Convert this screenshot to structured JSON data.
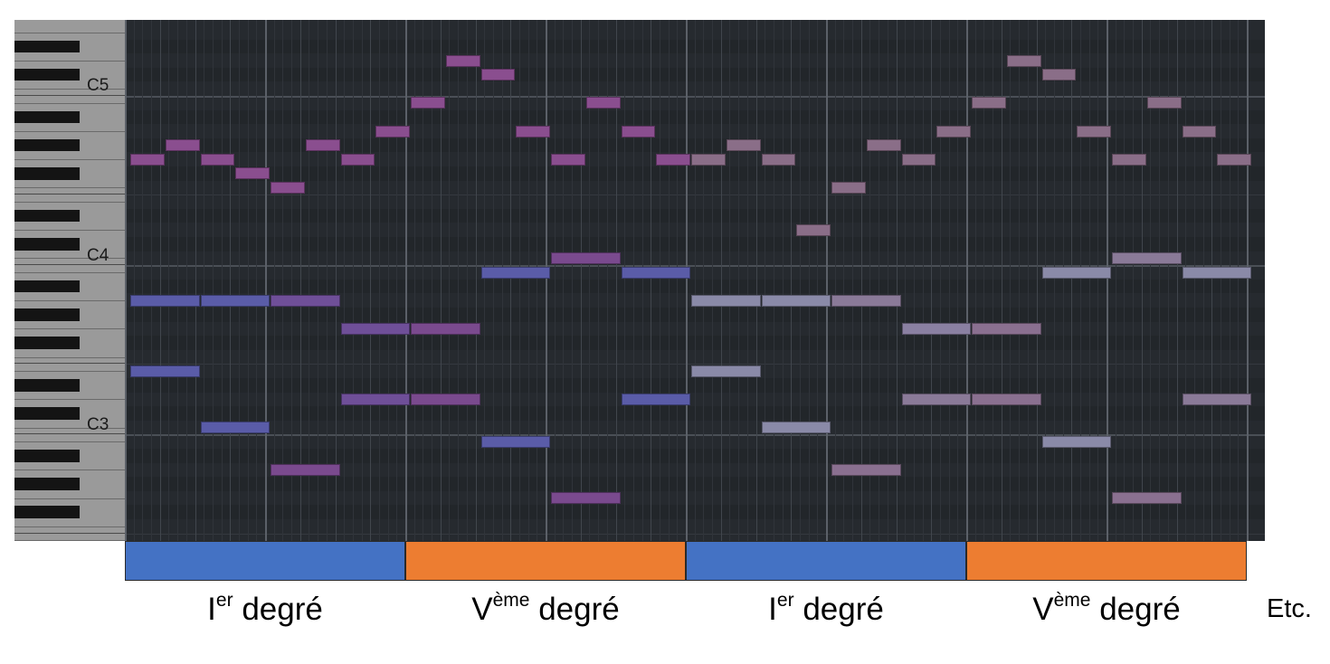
{
  "keyboard": {
    "octave_labels": [
      {
        "text": "C5",
        "midi": 72
      },
      {
        "text": "C4",
        "midi": 60
      },
      {
        "text": "C3",
        "midi": 48
      }
    ]
  },
  "piano_roll": {
    "pitch_top": 76,
    "pitch_bottom": 40,
    "total_beats": 32,
    "beats_per_bar": 4,
    "notes": [
      {
        "start": 0,
        "len": 1,
        "pitch": 67,
        "color": "#8a4e8f"
      },
      {
        "start": 1,
        "len": 1,
        "pitch": 68,
        "color": "#8a4e8f"
      },
      {
        "start": 2,
        "len": 1,
        "pitch": 67,
        "color": "#8a4e8f"
      },
      {
        "start": 4,
        "len": 1,
        "pitch": 65,
        "color": "#8a4e8f"
      },
      {
        "start": 5,
        "len": 1,
        "pitch": 68,
        "color": "#8a4e8f"
      },
      {
        "start": 6,
        "len": 1,
        "pitch": 67,
        "color": "#8a4e8f"
      },
      {
        "start": 7,
        "len": 1,
        "pitch": 69,
        "color": "#8a4e8f"
      },
      {
        "start": 8,
        "len": 1,
        "pitch": 71,
        "color": "#8a4e8f"
      },
      {
        "start": 9,
        "len": 1,
        "pitch": 74,
        "color": "#8a4e8f"
      },
      {
        "start": 10,
        "len": 1,
        "pitch": 73,
        "color": "#8a4e8f"
      },
      {
        "start": 11,
        "len": 1,
        "pitch": 69,
        "color": "#8a4e8f"
      },
      {
        "start": 12,
        "len": 1,
        "pitch": 67,
        "color": "#8a4e8f"
      },
      {
        "start": 13,
        "len": 1,
        "pitch": 71,
        "color": "#8a4e8f"
      },
      {
        "start": 14,
        "len": 1,
        "pitch": 69,
        "color": "#8a4e8f"
      },
      {
        "start": 15,
        "len": 1,
        "pitch": 67,
        "color": "#8a4e8f"
      },
      {
        "start": 3,
        "len": 1,
        "pitch": 66,
        "color": "#8a4e8f"
      },
      {
        "start": 0,
        "len": 2,
        "pitch": 57,
        "color": "#5a5ca8"
      },
      {
        "start": 2,
        "len": 2,
        "pitch": 57,
        "color": "#5a5ca8"
      },
      {
        "start": 4,
        "len": 2,
        "pitch": 57,
        "color": "#6f4f98"
      },
      {
        "start": 6,
        "len": 2,
        "pitch": 55,
        "color": "#6f4f98"
      },
      {
        "start": 8,
        "len": 2,
        "pitch": 55,
        "color": "#7a4a8e"
      },
      {
        "start": 10,
        "len": 2,
        "pitch": 59,
        "color": "#5a5ca8"
      },
      {
        "start": 12,
        "len": 2,
        "pitch": 60,
        "color": "#7a4a8e"
      },
      {
        "start": 14,
        "len": 2,
        "pitch": 59,
        "color": "#5a5ca8"
      },
      {
        "start": 0,
        "len": 2,
        "pitch": 52,
        "color": "#5a5ca8"
      },
      {
        "start": 2,
        "len": 2,
        "pitch": 48,
        "color": "#5a5ca8"
      },
      {
        "start": 4,
        "len": 2,
        "pitch": 45,
        "color": "#7a4a8e"
      },
      {
        "start": 6,
        "len": 2,
        "pitch": 50,
        "color": "#6f4f98"
      },
      {
        "start": 8,
        "len": 2,
        "pitch": 50,
        "color": "#7a4a8e"
      },
      {
        "start": 10,
        "len": 2,
        "pitch": 47,
        "color": "#5a5ca8"
      },
      {
        "start": 12,
        "len": 2,
        "pitch": 43,
        "color": "#7a4a8e"
      },
      {
        "start": 14,
        "len": 2,
        "pitch": 50,
        "color": "#5a5ca8"
      },
      {
        "start": 16,
        "len": 1,
        "pitch": 67,
        "color": "#8a6e88"
      },
      {
        "start": 17,
        "len": 1,
        "pitch": 68,
        "color": "#8a6e88"
      },
      {
        "start": 18,
        "len": 1,
        "pitch": 67,
        "color": "#8a6e88"
      },
      {
        "start": 19,
        "len": 1,
        "pitch": 62,
        "color": "#8a6e88"
      },
      {
        "start": 20,
        "len": 1,
        "pitch": 65,
        "color": "#8a6e88"
      },
      {
        "start": 21,
        "len": 1,
        "pitch": 68,
        "color": "#8a6e88"
      },
      {
        "start": 22,
        "len": 1,
        "pitch": 67,
        "color": "#8a6e88"
      },
      {
        "start": 23,
        "len": 1,
        "pitch": 69,
        "color": "#8a6e88"
      },
      {
        "start": 24,
        "len": 1,
        "pitch": 71,
        "color": "#8a6e88"
      },
      {
        "start": 25,
        "len": 1,
        "pitch": 74,
        "color": "#8a6e88"
      },
      {
        "start": 26,
        "len": 1,
        "pitch": 73,
        "color": "#8a6e88"
      },
      {
        "start": 27,
        "len": 1,
        "pitch": 69,
        "color": "#8a6e88"
      },
      {
        "start": 28,
        "len": 1,
        "pitch": 67,
        "color": "#8a6e88"
      },
      {
        "start": 29,
        "len": 1,
        "pitch": 71,
        "color": "#8a6e88"
      },
      {
        "start": 30,
        "len": 1,
        "pitch": 69,
        "color": "#8a6e88"
      },
      {
        "start": 31,
        "len": 1,
        "pitch": 67,
        "color": "#8a6e88"
      },
      {
        "start": 16,
        "len": 2,
        "pitch": 57,
        "color": "#8a8aa8"
      },
      {
        "start": 18,
        "len": 2,
        "pitch": 57,
        "color": "#8a8aa8"
      },
      {
        "start": 20,
        "len": 2,
        "pitch": 57,
        "color": "#8a7a98"
      },
      {
        "start": 22,
        "len": 2,
        "pitch": 55,
        "color": "#8a80a2"
      },
      {
        "start": 24,
        "len": 2,
        "pitch": 55,
        "color": "#8a7090"
      },
      {
        "start": 26,
        "len": 2,
        "pitch": 59,
        "color": "#8a8aa8"
      },
      {
        "start": 28,
        "len": 2,
        "pitch": 60,
        "color": "#8a7a98"
      },
      {
        "start": 30,
        "len": 2,
        "pitch": 59,
        "color": "#8a8aa8"
      },
      {
        "start": 16,
        "len": 2,
        "pitch": 52,
        "color": "#8a8aa8"
      },
      {
        "start": 18,
        "len": 2,
        "pitch": 48,
        "color": "#8a8aa8"
      },
      {
        "start": 20,
        "len": 2,
        "pitch": 45,
        "color": "#8a7090"
      },
      {
        "start": 22,
        "len": 2,
        "pitch": 50,
        "color": "#8a7a98"
      },
      {
        "start": 24,
        "len": 2,
        "pitch": 50,
        "color": "#8a7090"
      },
      {
        "start": 26,
        "len": 2,
        "pitch": 47,
        "color": "#8a8aa8"
      },
      {
        "start": 28,
        "len": 2,
        "pitch": 43,
        "color": "#8a7090"
      },
      {
        "start": 30,
        "len": 2,
        "pitch": 50,
        "color": "#8a7a98"
      }
    ]
  },
  "sections": [
    {
      "degree": "I",
      "suffix": "er",
      "word": "degré",
      "color": "#4472c4",
      "bars": 2
    },
    {
      "degree": "V",
      "suffix": "ème",
      "word": "degré",
      "color": "#ed7d31",
      "bars": 2
    },
    {
      "degree": "I",
      "suffix": "er",
      "word": "degré",
      "color": "#4472c4",
      "bars": 2
    },
    {
      "degree": "V",
      "suffix": "ème",
      "word": "degré",
      "color": "#ed7d31",
      "bars": 2
    }
  ],
  "etc_label": "Etc.",
  "colors": {
    "roll_background": "#262a2f",
    "keyboard_white": "#9a9a9a",
    "keyboard_black": "#141414"
  }
}
